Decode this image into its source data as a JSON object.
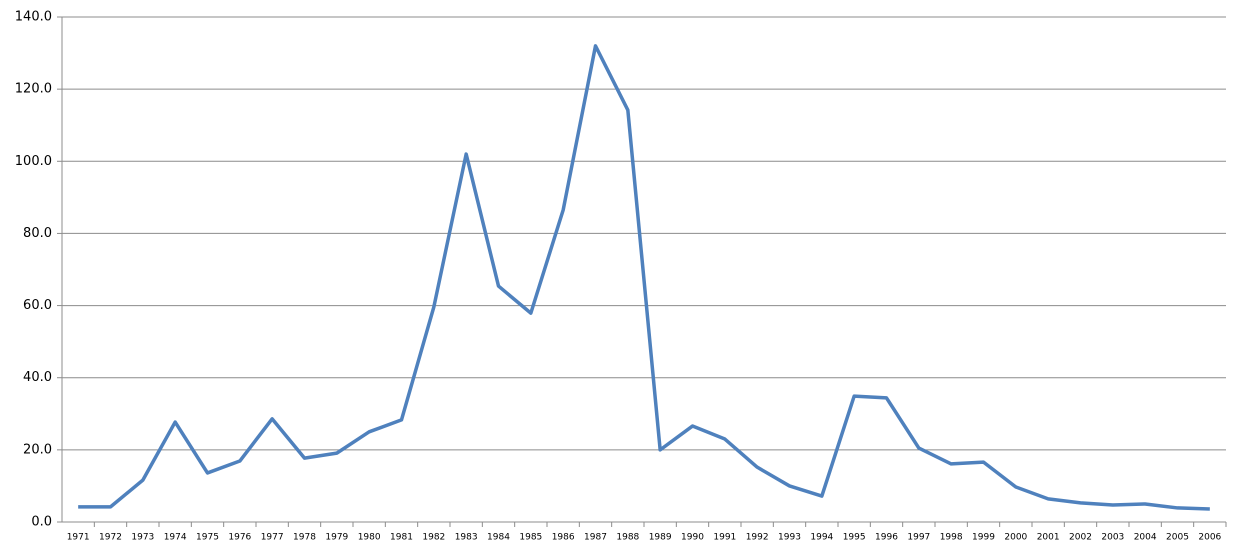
{
  "chart_data": {
    "type": "line",
    "categories": [
      "1971",
      "1972",
      "1973",
      "1974",
      "1975",
      "1976",
      "1977",
      "1978",
      "1979",
      "1980",
      "1981",
      "1982",
      "1983",
      "1984",
      "1985",
      "1986",
      "1987",
      "1988",
      "1989",
      "1990",
      "1991",
      "1992",
      "1993",
      "1994",
      "1995",
      "1996",
      "1997",
      "1998",
      "1999",
      "2000",
      "2001",
      "2002",
      "2003",
      "2004",
      "2005",
      "2006"
    ],
    "series": [
      {
        "color": "#4f81bd",
        "values": [
          4.2,
          4.2,
          11.6,
          27.7,
          13.6,
          16.9,
          28.6,
          17.7,
          19.1,
          25.0,
          28.3,
          59.6,
          102.0,
          65.4,
          57.9,
          86.5,
          132.0,
          114.2,
          20.0,
          26.6,
          23.0,
          15.2,
          10.0,
          7.2,
          34.9,
          34.4,
          20.5,
          16.1,
          16.6,
          9.7,
          6.4,
          5.3,
          4.7,
          5.0,
          3.9,
          3.6
        ]
      }
    ],
    "ylim": [
      0,
      140
    ],
    "yticks": [
      {
        "value": 0,
        "label": "0.0"
      },
      {
        "value": 20,
        "label": "20.0"
      },
      {
        "value": 40,
        "label": "40.0"
      },
      {
        "value": 60,
        "label": "60.0"
      },
      {
        "value": 80,
        "label": "80.0"
      },
      {
        "value": 100,
        "label": "100.0"
      },
      {
        "value": 120,
        "label": "120.0"
      },
      {
        "value": 140,
        "label": "140.0"
      }
    ],
    "grid": true
  }
}
